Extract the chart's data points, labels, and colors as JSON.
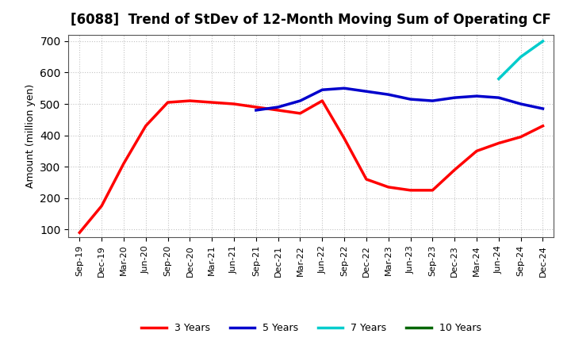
{
  "title": "[6088]  Trend of StDev of 12-Month Moving Sum of Operating CF",
  "ylabel": "Amount (million yen)",
  "ylim": [
    75,
    720
  ],
  "yticks": [
    100,
    200,
    300,
    400,
    500,
    600,
    700
  ],
  "background_color": "#ffffff",
  "grid_color": "#aaaaaa",
  "x_labels": [
    "Sep-19",
    "Dec-19",
    "Mar-20",
    "Jun-20",
    "Sep-20",
    "Dec-20",
    "Mar-21",
    "Jun-21",
    "Sep-21",
    "Dec-21",
    "Mar-22",
    "Jun-22",
    "Sep-22",
    "Dec-22",
    "Mar-23",
    "Jun-23",
    "Sep-23",
    "Dec-23",
    "Mar-24",
    "Jun-24",
    "Sep-24",
    "Dec-24"
  ],
  "series": {
    "3yr": {
      "color": "#ff0000",
      "label": "3 Years",
      "values": [
        90,
        175,
        310,
        430,
        505,
        510,
        505,
        500,
        490,
        480,
        470,
        510,
        390,
        260,
        235,
        225,
        225,
        290,
        350,
        375,
        395,
        430
      ]
    },
    "5yr": {
      "color": "#0000cc",
      "label": "5 Years",
      "values": [
        null,
        null,
        null,
        null,
        null,
        null,
        null,
        null,
        480,
        490,
        510,
        545,
        550,
        540,
        530,
        515,
        510,
        520,
        525,
        520,
        500,
        485
      ]
    },
    "7yr": {
      "color": "#00cccc",
      "label": "7 Years",
      "values": [
        null,
        null,
        null,
        null,
        null,
        null,
        null,
        null,
        null,
        null,
        null,
        null,
        null,
        null,
        null,
        null,
        null,
        null,
        null,
        580,
        650,
        700
      ]
    },
    "10yr": {
      "color": "#006600",
      "label": "10 Years",
      "values": [
        null,
        null,
        null,
        null,
        null,
        null,
        null,
        null,
        null,
        null,
        null,
        null,
        null,
        null,
        null,
        null,
        null,
        null,
        null,
        null,
        null,
        null
      ]
    }
  },
  "legend_entries": [
    "3 Years",
    "5 Years",
    "7 Years",
    "10 Years"
  ],
  "legend_colors": [
    "#ff0000",
    "#0000cc",
    "#00cccc",
    "#006600"
  ]
}
